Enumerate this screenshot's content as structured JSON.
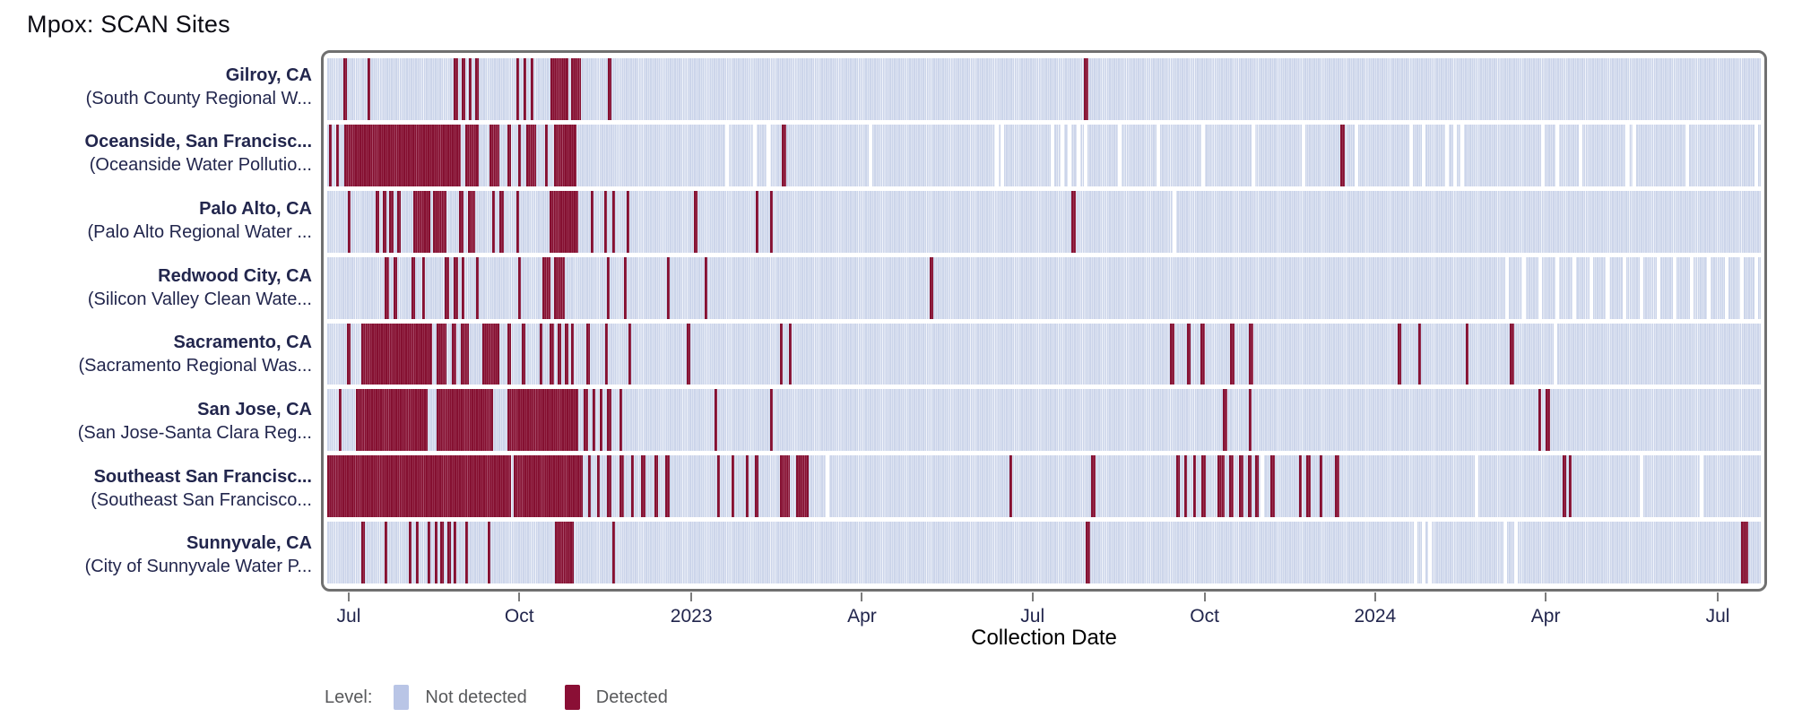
{
  "page": {
    "title": "Mpox: SCAN Sites"
  },
  "chart_data": {
    "type": "heatmap",
    "title": "Mpox: SCAN Sites",
    "xlabel": "Collection Date",
    "x_ticks": [
      {
        "label": "Jul",
        "pos": 0.015
      },
      {
        "label": "Oct",
        "pos": 0.134
      },
      {
        "label": "2023",
        "pos": 0.254
      },
      {
        "label": "Apr",
        "pos": 0.373
      },
      {
        "label": "Jul",
        "pos": 0.492
      },
      {
        "label": "Oct",
        "pos": 0.612
      },
      {
        "label": "2024",
        "pos": 0.731
      },
      {
        "label": "Apr",
        "pos": 0.85
      },
      {
        "label": "Jul",
        "pos": 0.97
      }
    ],
    "legend": {
      "label": "Level:",
      "items": [
        {
          "label": "Not detected",
          "color": "#b9c5e6"
        },
        {
          "label": "Detected",
          "color": "#8a0f35"
        }
      ]
    },
    "colors": {
      "not_detected_fill": "#ccd5ea",
      "detected_fill": "#851031",
      "frame": "#707070",
      "label_text": "#22264d",
      "legend_text": "#58595b"
    },
    "rows": [
      {
        "site": "Gilroy, CA",
        "facility": "(South County Regional W...",
        "detected": [
          [
            0.011,
            0.0135
          ],
          [
            0.028,
            0.03
          ],
          [
            0.088,
            0.091
          ],
          [
            0.094,
            0.0965
          ],
          [
            0.099,
            0.101
          ],
          [
            0.103,
            0.106
          ],
          [
            0.132,
            0.134
          ],
          [
            0.137,
            0.139
          ],
          [
            0.142,
            0.144
          ],
          [
            0.156,
            0.168
          ],
          [
            0.17,
            0.177
          ],
          [
            0.196,
            0.198
          ],
          [
            0.528,
            0.531
          ]
        ],
        "no_data_gaps": []
      },
      {
        "site": "Oceanside, San Francisc...",
        "facility": "(Oceanside Water Pollutio...",
        "detected": [
          [
            0.001,
            0.003
          ],
          [
            0.006,
            0.008
          ],
          [
            0.012,
            0.093
          ],
          [
            0.096,
            0.106
          ],
          [
            0.113,
            0.12
          ],
          [
            0.126,
            0.128
          ],
          [
            0.133,
            0.135
          ],
          [
            0.139,
            0.146
          ],
          [
            0.152,
            0.154
          ],
          [
            0.158,
            0.174
          ],
          [
            0.317,
            0.32
          ],
          [
            0.707,
            0.71
          ]
        ],
        "no_data_gaps": [
          0.279,
          0.298,
          0.308,
          0.379,
          0.467,
          0.471,
          0.506,
          0.513,
          0.518,
          0.524,
          0.529,
          0.553,
          0.58,
          0.611,
          0.646,
          0.681,
          0.718,
          0.756,
          0.765,
          0.781,
          0.787,
          0.792,
          0.848,
          0.858,
          0.874,
          0.907,
          0.912,
          0.949,
          0.997
        ]
      },
      {
        "site": "Palo Alto, CA",
        "facility": "(Palo Alto Regional Water ...",
        "detected": [
          [
            0.0145,
            0.0165
          ],
          [
            0.034,
            0.036
          ],
          [
            0.039,
            0.041
          ],
          [
            0.043,
            0.046
          ],
          [
            0.049,
            0.051
          ],
          [
            0.06,
            0.072
          ],
          [
            0.074,
            0.083
          ],
          [
            0.092,
            0.095
          ],
          [
            0.098,
            0.103
          ],
          [
            0.115,
            0.117
          ],
          [
            0.12,
            0.123
          ],
          [
            0.132,
            0.134
          ],
          [
            0.155,
            0.175
          ],
          [
            0.184,
            0.186
          ],
          [
            0.193,
            0.195
          ],
          [
            0.199,
            0.201
          ],
          [
            0.209,
            0.211
          ],
          [
            0.256,
            0.258
          ],
          [
            0.299,
            0.301
          ],
          [
            0.309,
            0.311
          ],
          [
            0.519,
            0.522
          ]
        ],
        "no_data_gaps": [
          0.591
        ]
      },
      {
        "site": "Redwood City, CA",
        "facility": "(Silicon Valley Clean Wate...",
        "detected": [
          [
            0.04,
            0.043
          ],
          [
            0.046,
            0.049
          ],
          [
            0.059,
            0.061
          ],
          [
            0.066,
            0.068
          ],
          [
            0.082,
            0.085
          ],
          [
            0.088,
            0.091
          ],
          [
            0.094,
            0.096
          ],
          [
            0.104,
            0.106
          ],
          [
            0.133,
            0.135
          ],
          [
            0.15,
            0.156
          ],
          [
            0.158,
            0.166
          ],
          [
            0.195,
            0.197
          ],
          [
            0.207,
            0.209
          ],
          [
            0.237,
            0.239
          ],
          [
            0.263,
            0.265
          ],
          [
            0.42,
            0.423
          ]
        ],
        "no_data_gaps": [
          0.823,
          0.835,
          0.846,
          0.858,
          0.87,
          0.882,
          0.893,
          0.905,
          0.917,
          0.929,
          0.94,
          0.952,
          0.964,
          0.976,
          0.987,
          0.997
        ]
      },
      {
        "site": "Sacramento, CA",
        "facility": "(Sacramento Regional Was...",
        "detected": [
          [
            0.014,
            0.016
          ],
          [
            0.024,
            0.073
          ],
          [
            0.076,
            0.083
          ],
          [
            0.087,
            0.09
          ],
          [
            0.093,
            0.099
          ],
          [
            0.108,
            0.12
          ],
          [
            0.126,
            0.128
          ],
          [
            0.136,
            0.138
          ],
          [
            0.148,
            0.15
          ],
          [
            0.155,
            0.158
          ],
          [
            0.161,
            0.163
          ],
          [
            0.166,
            0.168
          ],
          [
            0.17,
            0.172
          ],
          [
            0.181,
            0.183
          ],
          [
            0.194,
            0.196
          ],
          [
            0.21,
            0.212
          ],
          [
            0.251,
            0.253
          ],
          [
            0.316,
            0.318
          ],
          [
            0.322,
            0.324
          ],
          [
            0.588,
            0.591
          ],
          [
            0.6,
            0.602
          ],
          [
            0.609,
            0.612
          ],
          [
            0.63,
            0.633
          ],
          [
            0.643,
            0.646
          ],
          [
            0.747,
            0.749
          ],
          [
            0.761,
            0.763
          ],
          [
            0.794,
            0.796
          ],
          [
            0.825,
            0.828
          ]
        ],
        "no_data_gaps": [
          0.857
        ]
      },
      {
        "site": "San Jose, CA",
        "facility": "(San Jose-Santa Clara Reg...",
        "detected": [
          [
            0.008,
            0.01
          ],
          [
            0.02,
            0.07
          ],
          [
            0.076,
            0.116
          ],
          [
            0.126,
            0.175
          ],
          [
            0.179,
            0.182
          ],
          [
            0.185,
            0.187
          ],
          [
            0.19,
            0.192
          ],
          [
            0.195,
            0.198
          ],
          [
            0.204,
            0.206
          ],
          [
            0.27,
            0.272
          ],
          [
            0.309,
            0.311
          ],
          [
            0.625,
            0.628
          ],
          [
            0.643,
            0.645
          ],
          [
            0.845,
            0.847
          ],
          [
            0.85,
            0.853
          ]
        ],
        "no_data_gaps": []
      },
      {
        "site": "Southeast San Francisc...",
        "facility": "(Southeast San Francisco...",
        "detected": [
          [
            0.0,
            0.128
          ],
          [
            0.13,
            0.178
          ],
          [
            0.182,
            0.184
          ],
          [
            0.188,
            0.19
          ],
          [
            0.195,
            0.198
          ],
          [
            0.204,
            0.207
          ],
          [
            0.212,
            0.214
          ],
          [
            0.219,
            0.222
          ],
          [
            0.228,
            0.231
          ],
          [
            0.236,
            0.239
          ],
          [
            0.272,
            0.274
          ],
          [
            0.282,
            0.284
          ],
          [
            0.292,
            0.294
          ],
          [
            0.298,
            0.301
          ],
          [
            0.316,
            0.323
          ],
          [
            0.327,
            0.336
          ],
          [
            0.476,
            0.478
          ],
          [
            0.533,
            0.536
          ],
          [
            0.592,
            0.595
          ],
          [
            0.598,
            0.6
          ],
          [
            0.604,
            0.606
          ],
          [
            0.61,
            0.613
          ],
          [
            0.621,
            0.626
          ],
          [
            0.629,
            0.632
          ],
          [
            0.636,
            0.639
          ],
          [
            0.642,
            0.645
          ],
          [
            0.647,
            0.65
          ],
          [
            0.658,
            0.661
          ],
          [
            0.678,
            0.68
          ],
          [
            0.683,
            0.686
          ],
          [
            0.692,
            0.694
          ],
          [
            0.703,
            0.706
          ],
          [
            0.862,
            0.864
          ],
          [
            0.866,
            0.868
          ]
        ],
        "no_data_gaps": [
          0.349,
          0.652,
          0.802,
          0.917,
          0.959
        ]
      },
      {
        "site": "Sunnyvale, CA",
        "facility": "(City of Sunnyvale Water P...",
        "detected": [
          [
            0.024,
            0.026
          ],
          [
            0.04,
            0.042
          ],
          [
            0.057,
            0.059
          ],
          [
            0.062,
            0.064
          ],
          [
            0.07,
            0.072
          ],
          [
            0.075,
            0.077
          ],
          [
            0.079,
            0.081
          ],
          [
            0.084,
            0.086
          ],
          [
            0.088,
            0.09
          ],
          [
            0.096,
            0.098
          ],
          [
            0.112,
            0.114
          ],
          [
            0.159,
            0.172
          ],
          [
            0.199,
            0.201
          ],
          [
            0.529,
            0.532
          ],
          [
            0.986,
            0.991
          ]
        ],
        "no_data_gaps": [
          0.759,
          0.765,
          0.769,
          0.822,
          0.829
        ]
      }
    ]
  }
}
